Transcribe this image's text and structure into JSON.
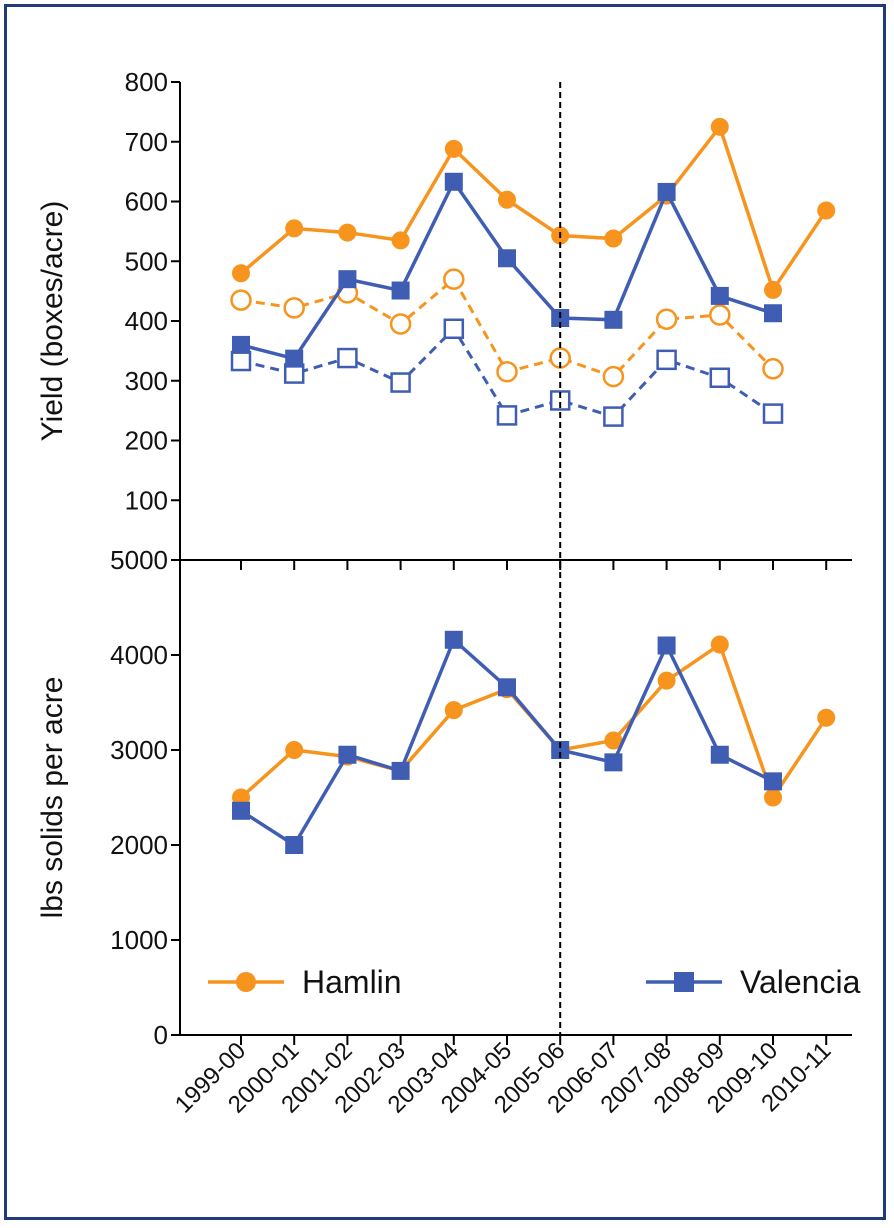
{
  "colors": {
    "hamlin": "#f7941d",
    "valencia": "#3f5db3",
    "axis": "#000000",
    "frame": "#233a7a"
  },
  "chart_data": [
    {
      "type": "line",
      "ylabel": "Yield (boxes/acre)",
      "ylim": [
        0,
        800
      ],
      "yticks": [
        "800",
        "700",
        "600",
        "500",
        "400",
        "300",
        "200",
        "100",
        "0"
      ],
      "categories": [
        "1999-00",
        "2000-01",
        "2001-02",
        "2002-03",
        "2003-04",
        "2004-05",
        "2005-06",
        "2006-07",
        "2007-08",
        "2008-09",
        "2009-10",
        "2010-11"
      ],
      "divider_category": "2005-06",
      "series": [
        {
          "key": "hamlin_solid",
          "color": "#f7941d",
          "marker": "circle",
          "filled": true,
          "dashed": false,
          "values": [
            480,
            555,
            548,
            535,
            688,
            603,
            543,
            538,
            610,
            725,
            452,
            585
          ]
        },
        {
          "key": "valencia_solid",
          "color": "#3f5db3",
          "marker": "square",
          "filled": true,
          "dashed": false,
          "values": [
            360,
            337,
            470,
            451,
            633,
            505,
            405,
            402,
            616,
            442,
            413,
            null
          ]
        },
        {
          "key": "hamlin_dashed",
          "color": "#f7941d",
          "marker": "circle",
          "filled": false,
          "dashed": true,
          "values": [
            435,
            422,
            447,
            395,
            470,
            315,
            338,
            307,
            403,
            410,
            320,
            null
          ]
        },
        {
          "key": "valencia_dashed",
          "color": "#3f5db3",
          "marker": "square",
          "filled": false,
          "dashed": true,
          "values": [
            333,
            312,
            338,
            297,
            387,
            242,
            267,
            240,
            335,
            305,
            245,
            null
          ]
        }
      ]
    },
    {
      "type": "line",
      "ylabel": "lbs solids per acre",
      "ylim": [
        0,
        5000
      ],
      "yticks": [
        "5000",
        "4000",
        "3000",
        "2000",
        "1000",
        "0"
      ],
      "categories": [
        "1999-00",
        "2000-01",
        "2001-02",
        "2002-03",
        "2003-04",
        "2004-05",
        "2005-06",
        "2006-07",
        "2007-08",
        "2008-09",
        "2009-10",
        "2010-11"
      ],
      "divider_category": "2005-06",
      "legend": {
        "placement": "bottom",
        "items": [
          {
            "label": "Hamlin",
            "color": "#f7941d",
            "marker": "circle"
          },
          {
            "label": "Valencia",
            "color": "#3f5db3",
            "marker": "square"
          }
        ]
      },
      "series": [
        {
          "name": "Hamlin",
          "color": "#f7941d",
          "marker": "circle",
          "filled": true,
          "dashed": false,
          "values": [
            2500,
            3000,
            2930,
            2780,
            3420,
            3640,
            3000,
            3100,
            3730,
            4110,
            2500,
            3340
          ]
        },
        {
          "name": "Valencia",
          "color": "#3f5db3",
          "marker": "square",
          "filled": true,
          "dashed": false,
          "values": [
            2360,
            2000,
            2950,
            2780,
            4160,
            3660,
            3000,
            2870,
            4100,
            2950,
            2670,
            null
          ]
        }
      ]
    }
  ]
}
